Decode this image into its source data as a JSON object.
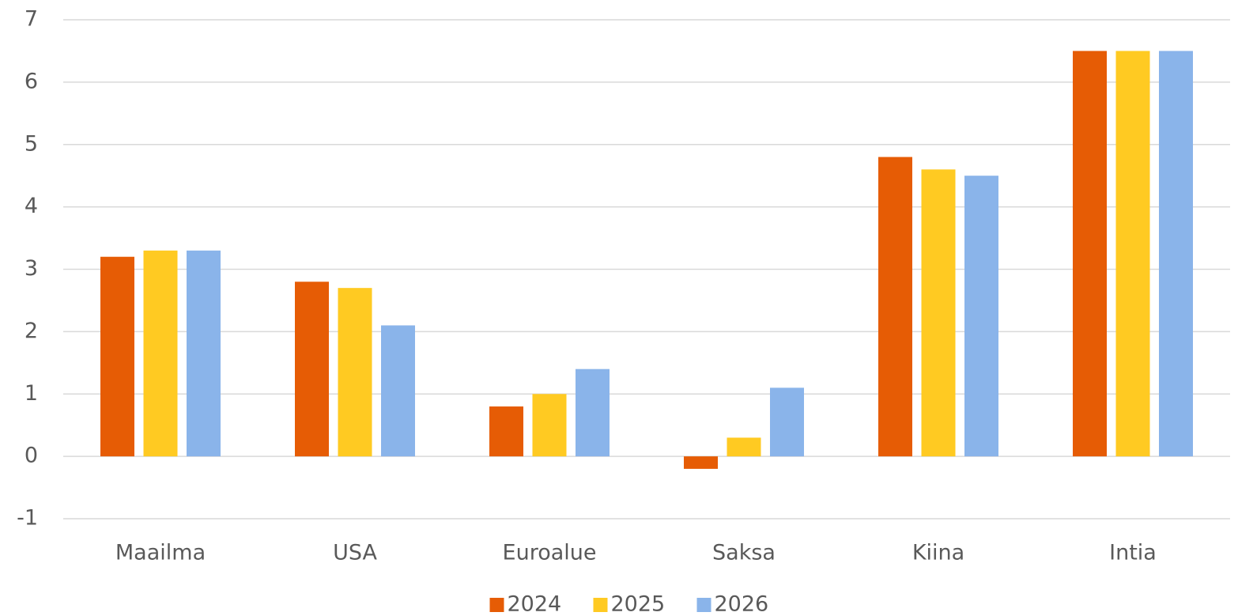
{
  "chart_data": {
    "type": "bar",
    "categories": [
      "Maailma",
      "USA",
      "Euroalue",
      "Saksa",
      "Kiina",
      "Intia"
    ],
    "series": [
      {
        "name": "2024",
        "color": "#e65c05",
        "values": [
          3.2,
          2.8,
          0.8,
          -0.2,
          4.8,
          6.5
        ]
      },
      {
        "name": "2025",
        "color": "#ffca22",
        "values": [
          3.3,
          2.7,
          1.0,
          0.3,
          4.6,
          6.5
        ]
      },
      {
        "name": "2026",
        "color": "#8ab4ea",
        "values": [
          3.3,
          2.1,
          1.4,
          1.1,
          4.5,
          6.5
        ]
      }
    ],
    "ylim": [
      -1,
      7
    ],
    "yticks": [
      -1,
      0,
      1,
      2,
      3,
      4,
      5,
      6,
      7
    ],
    "grid": true,
    "legend": "bottom"
  }
}
